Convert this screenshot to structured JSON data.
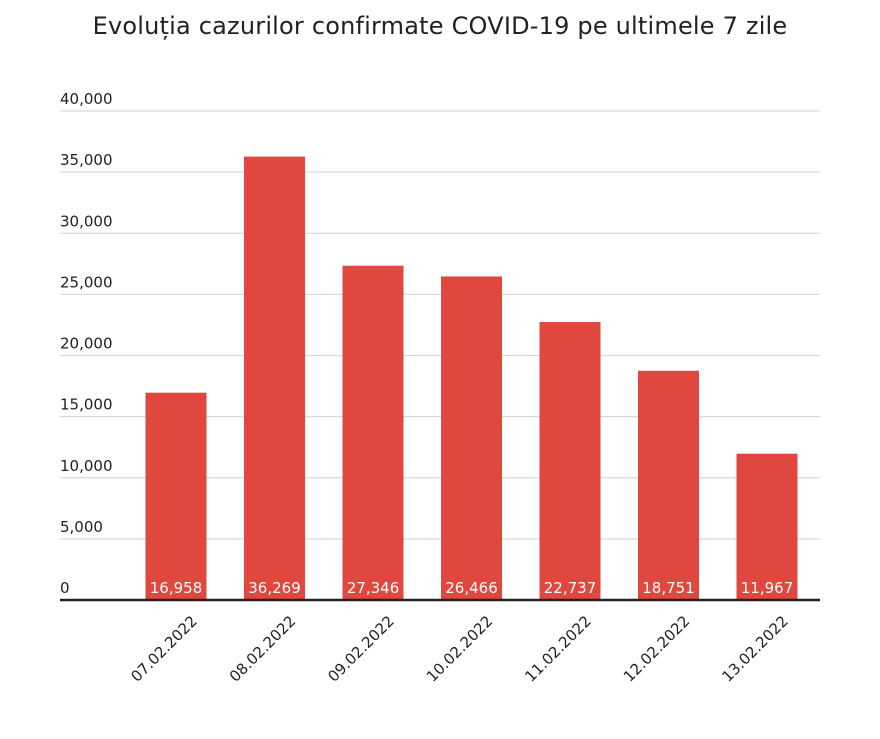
{
  "chart_data": {
    "type": "bar",
    "title": "Evoluția cazurilor confirmate COVID-19 pe ultimele 7 zile",
    "xlabel": "",
    "ylabel": "",
    "categories": [
      "07.02.2022",
      "08.02.2022",
      "09.02.2022",
      "10.02.2022",
      "11.02.2022",
      "12.02.2022",
      "13.02.2022"
    ],
    "values": [
      16958,
      36269,
      27346,
      26466,
      22737,
      18751,
      11967
    ],
    "data_labels": [
      "16,958",
      "36,269",
      "27,346",
      "26,466",
      "22,737",
      "18,751",
      "11,967"
    ],
    "ylim": [
      0,
      40000
    ],
    "yticks": [
      0,
      5000,
      10000,
      15000,
      20000,
      25000,
      30000,
      35000,
      40000
    ],
    "ytick_labels": [
      "0",
      "5,000",
      "10,000",
      "15,000",
      "20,000",
      "25,000",
      "30,000",
      "35,000",
      "40,000"
    ],
    "grid": true,
    "legend": "none",
    "colors": {
      "bar": "#e0473f",
      "grid": "#d9d9d9",
      "axis": "#222222",
      "data_label": "#ffffff"
    }
  }
}
